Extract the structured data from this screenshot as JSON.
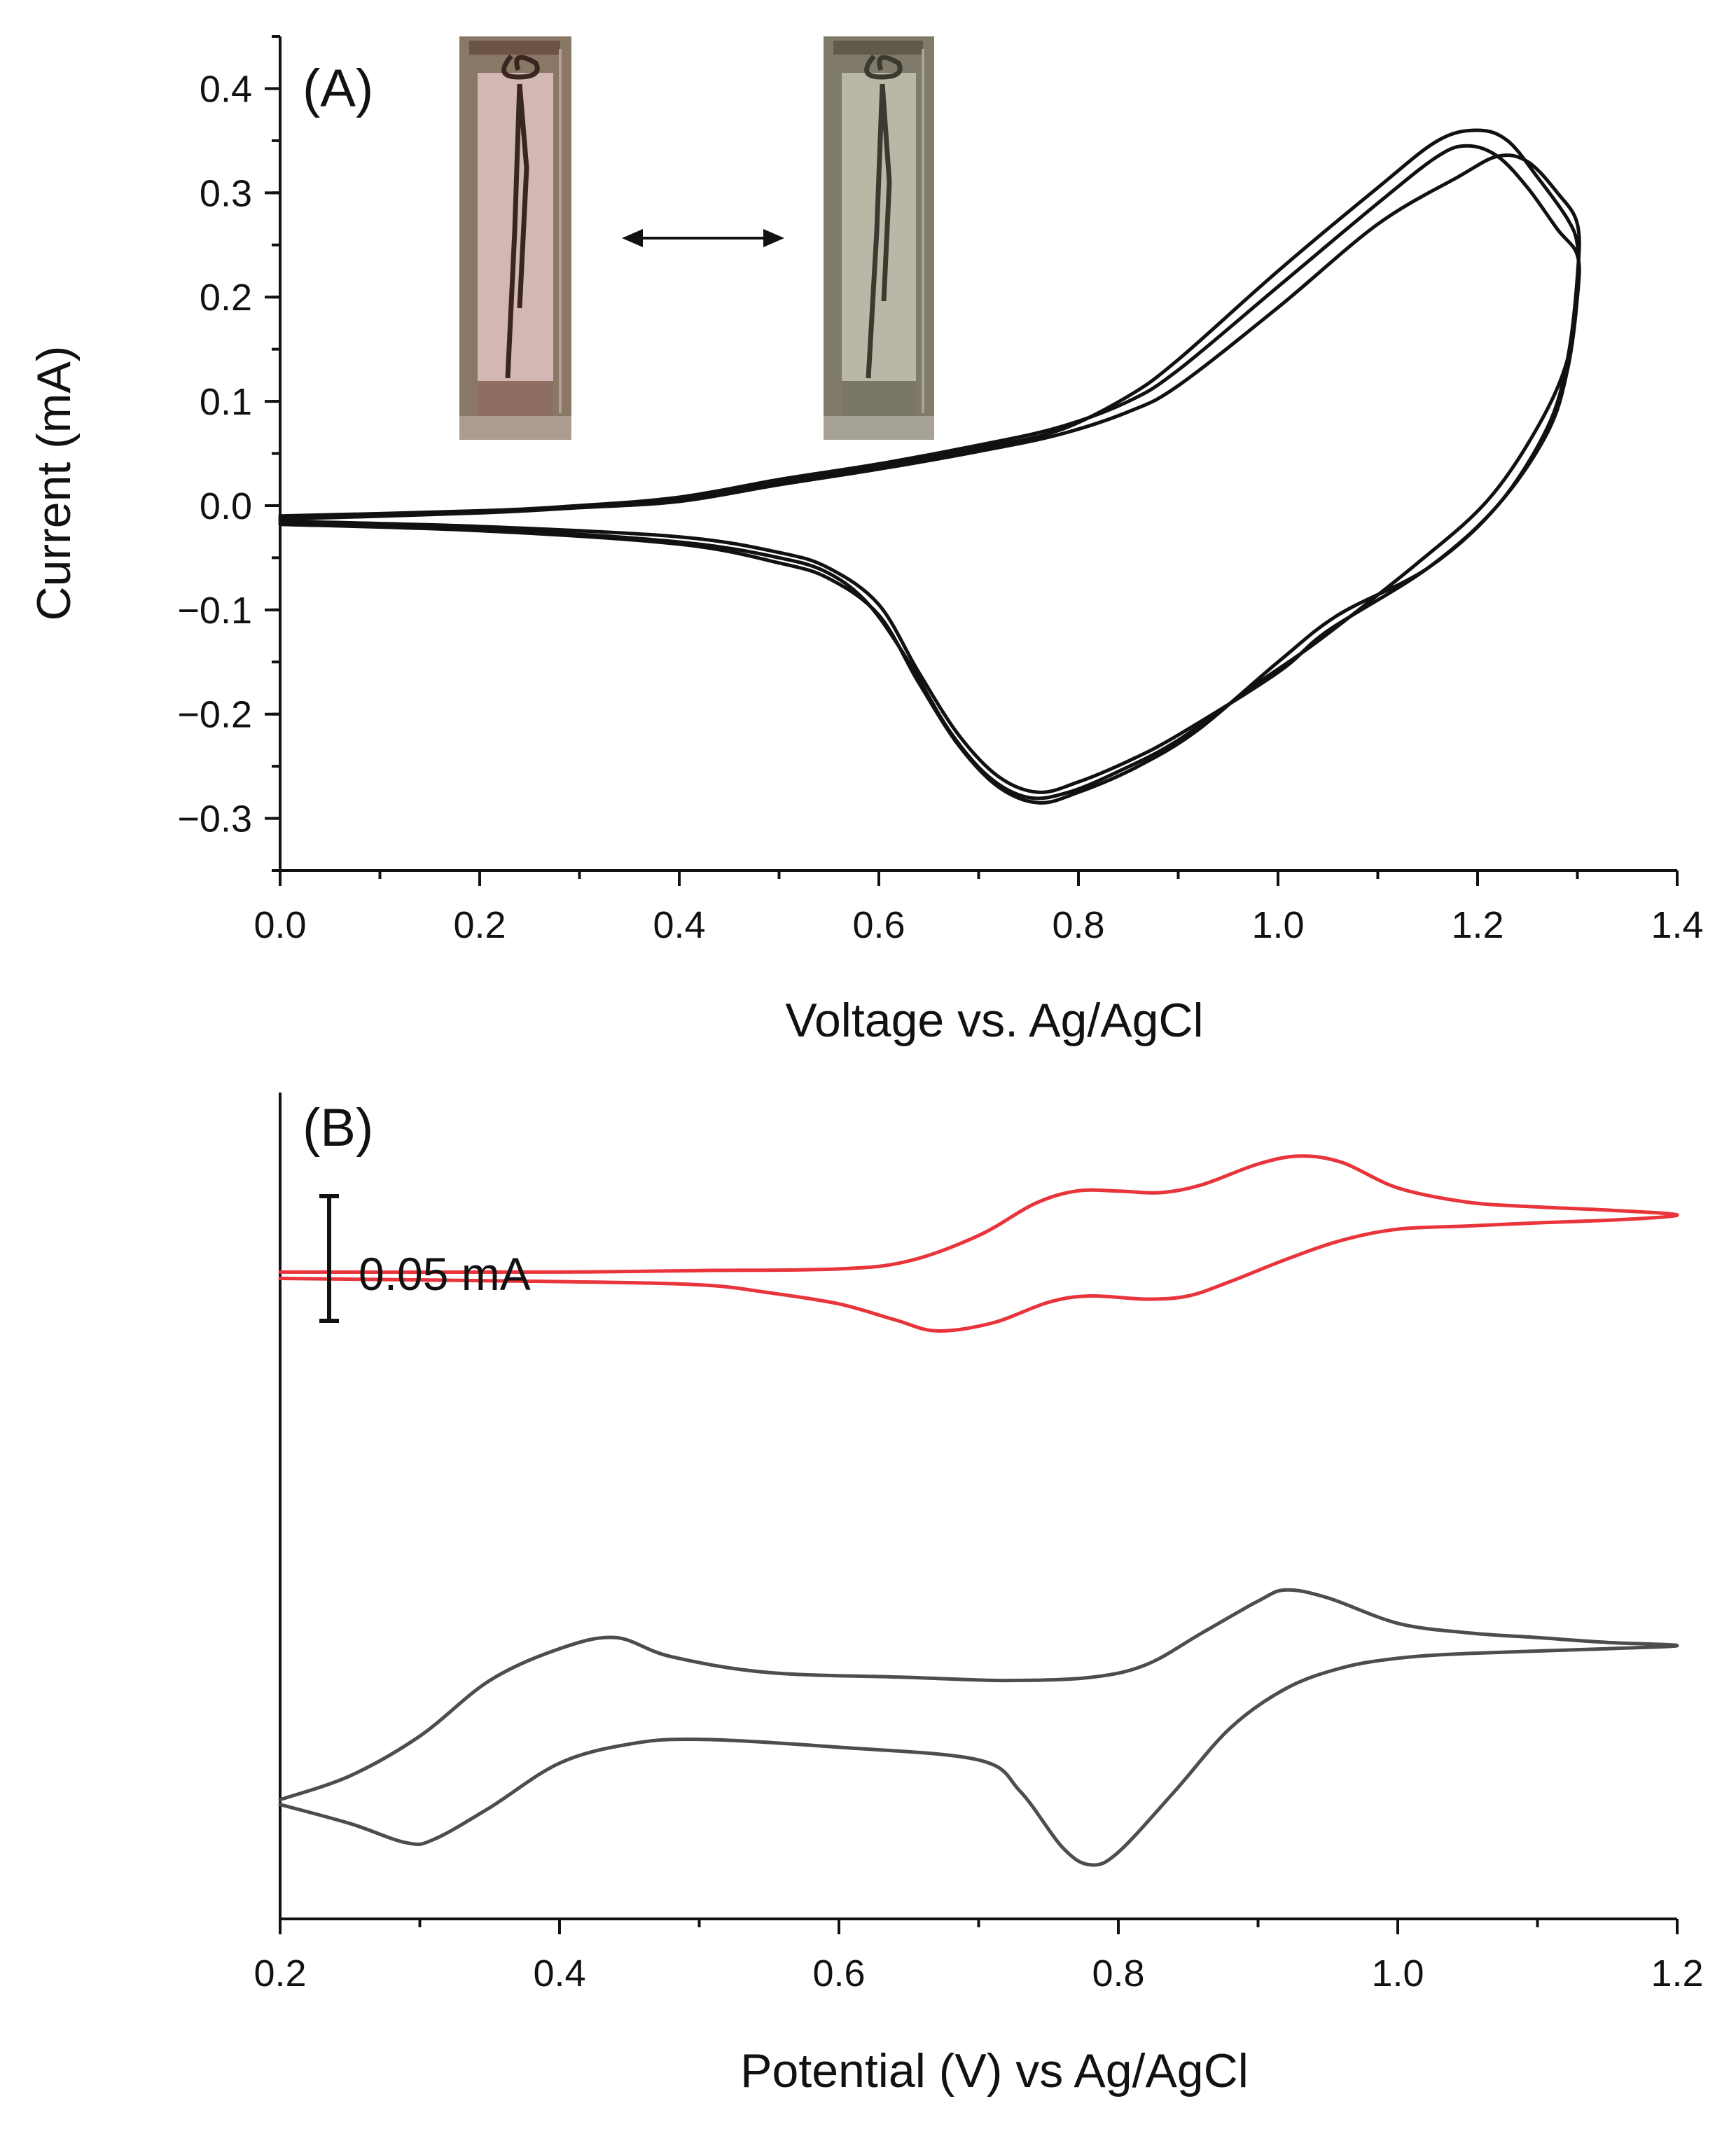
{
  "chart_data": [
    {
      "panel_label": "(A)",
      "type": "line",
      "xlabel": "Voltage vs. Ag/AgCl",
      "ylabel": "Current (mA)",
      "xlim": [
        0.0,
        1.4
      ],
      "ylim": [
        -0.35,
        0.45
      ],
      "xticks": [
        0.0,
        0.2,
        0.4,
        0.6,
        0.8,
        1.0,
        1.2,
        1.4
      ],
      "xtick_labels": [
        "0.0",
        "0.2",
        "0.4",
        "0.6",
        "0.8",
        "1.0",
        "1.2",
        "1.4"
      ],
      "yticks": [
        -0.3,
        -0.2,
        -0.1,
        0.0,
        0.1,
        0.2,
        0.3,
        0.4
      ],
      "ytick_labels": [
        "−0.3",
        "−0.2",
        "−0.1",
        "0.0",
        "0.1",
        "0.2",
        "0.3",
        "0.4"
      ],
      "grid": false,
      "line_color": "#111111",
      "inset": {
        "description_icons": [
          "cuvette-photo-reduced",
          "double-arrow-icon",
          "cuvette-photo-oxidized"
        ]
      },
      "series": [
        {
          "values_xy": [
            [
              0.0,
              -0.01
            ],
            [
              0.2,
              -0.005
            ],
            [
              0.3,
              0.0
            ],
            [
              0.4,
              0.008
            ],
            [
              0.5,
              0.025
            ],
            [
              0.6,
              0.04
            ],
            [
              0.7,
              0.058
            ],
            [
              0.78,
              0.075
            ],
            [
              0.85,
              0.1
            ],
            [
              0.9,
              0.13
            ],
            [
              1.0,
              0.21
            ],
            [
              1.1,
              0.29
            ],
            [
              1.16,
              0.335
            ],
            [
              1.19,
              0.345
            ],
            [
              1.22,
              0.335
            ],
            [
              1.25,
              0.305
            ],
            [
              1.28,
              0.265
            ],
            [
              1.3,
              0.24
            ],
            [
              1.3,
              0.2
            ],
            [
              1.29,
              0.13
            ],
            [
              1.27,
              0.07
            ],
            [
              1.22,
              0.0
            ],
            [
              1.15,
              -0.06
            ],
            [
              1.05,
              -0.12
            ],
            [
              1.0,
              -0.16
            ],
            [
              0.9,
              -0.22
            ],
            [
              0.85,
              -0.245
            ],
            [
              0.8,
              -0.265
            ],
            [
              0.76,
              -0.275
            ],
            [
              0.72,
              -0.26
            ],
            [
              0.68,
              -0.22
            ],
            [
              0.64,
              -0.16
            ],
            [
              0.6,
              -0.095
            ],
            [
              0.55,
              -0.06
            ],
            [
              0.5,
              -0.045
            ],
            [
              0.4,
              -0.03
            ],
            [
              0.2,
              -0.02
            ],
            [
              0.0,
              -0.015
            ]
          ]
        },
        {
          "values_xy": [
            [
              0.0,
              -0.012
            ],
            [
              0.2,
              -0.006
            ],
            [
              0.3,
              -0.001
            ],
            [
              0.4,
              0.005
            ],
            [
              0.5,
              0.022
            ],
            [
              0.6,
              0.037
            ],
            [
              0.7,
              0.055
            ],
            [
              0.78,
              0.072
            ],
            [
              0.85,
              0.105
            ],
            [
              0.9,
              0.14
            ],
            [
              1.0,
              0.225
            ],
            [
              1.1,
              0.305
            ],
            [
              1.16,
              0.35
            ],
            [
              1.2,
              0.36
            ],
            [
              1.23,
              0.35
            ],
            [
              1.26,
              0.315
            ],
            [
              1.29,
              0.275
            ],
            [
              1.3,
              0.25
            ],
            [
              1.3,
              0.21
            ],
            [
              1.29,
              0.14
            ],
            [
              1.26,
              0.075
            ],
            [
              1.21,
              0.005
            ],
            [
              1.14,
              -0.055
            ],
            [
              1.04,
              -0.13
            ],
            [
              0.98,
              -0.17
            ],
            [
              0.9,
              -0.225
            ],
            [
              0.84,
              -0.255
            ],
            [
              0.79,
              -0.275
            ],
            [
              0.75,
              -0.28
            ],
            [
              0.71,
              -0.26
            ],
            [
              0.67,
              -0.215
            ],
            [
              0.63,
              -0.15
            ],
            [
              0.59,
              -0.095
            ],
            [
              0.55,
              -0.065
            ],
            [
              0.5,
              -0.05
            ],
            [
              0.4,
              -0.035
            ],
            [
              0.2,
              -0.022
            ],
            [
              0.0,
              -0.017
            ]
          ]
        },
        {
          "values_xy": [
            [
              0.0,
              -0.013
            ],
            [
              0.2,
              -0.007
            ],
            [
              0.3,
              -0.002
            ],
            [
              0.4,
              0.004
            ],
            [
              0.5,
              0.02
            ],
            [
              0.6,
              0.035
            ],
            [
              0.7,
              0.052
            ],
            [
              0.78,
              0.068
            ],
            [
              0.85,
              0.09
            ],
            [
              0.9,
              0.115
            ],
            [
              1.0,
              0.19
            ],
            [
              1.1,
              0.27
            ],
            [
              1.18,
              0.315
            ],
            [
              1.22,
              0.335
            ],
            [
              1.25,
              0.33
            ],
            [
              1.28,
              0.3
            ],
            [
              1.3,
              0.27
            ],
            [
              1.3,
              0.22
            ],
            [
              1.29,
              0.14
            ],
            [
              1.27,
              0.075
            ],
            [
              1.22,
              0.0
            ],
            [
              1.15,
              -0.06
            ],
            [
              1.06,
              -0.105
            ],
            [
              1.0,
              -0.15
            ],
            [
              0.92,
              -0.215
            ],
            [
              0.86,
              -0.25
            ],
            [
              0.8,
              -0.275
            ],
            [
              0.76,
              -0.285
            ],
            [
              0.72,
              -0.27
            ],
            [
              0.68,
              -0.23
            ],
            [
              0.64,
              -0.17
            ],
            [
              0.6,
              -0.105
            ],
            [
              0.55,
              -0.07
            ],
            [
              0.5,
              -0.055
            ],
            [
              0.4,
              -0.037
            ],
            [
              0.2,
              -0.024
            ],
            [
              0.0,
              -0.018
            ]
          ]
        }
      ]
    },
    {
      "panel_label": "(B)",
      "type": "line",
      "xlabel": "Potential (V) vs Ag/AgCl",
      "ylabel": "",
      "xlim": [
        0.2,
        1.2
      ],
      "ylim": [
        -0.47,
        0.05
      ],
      "xticks": [
        0.2,
        0.4,
        0.6,
        0.8,
        1.0,
        1.2
      ],
      "xtick_labels": [
        "0.2",
        "0.4",
        "0.6",
        "0.8",
        "1.0",
        "1.2"
      ],
      "grid": false,
      "scale_bar": {
        "label": "0.05 mA",
        "value": 0.05
      },
      "series": [
        {
          "color": "#e8343a",
          "values_xy": [
            [
              0.2,
              -0.063
            ],
            [
              0.4,
              -0.063
            ],
            [
              0.5,
              -0.062
            ],
            [
              0.6,
              -0.061
            ],
            [
              0.65,
              -0.056
            ],
            [
              0.7,
              -0.04
            ],
            [
              0.74,
              -0.02
            ],
            [
              0.77,
              -0.012
            ],
            [
              0.8,
              -0.012
            ],
            [
              0.83,
              -0.013
            ],
            [
              0.86,
              -0.008
            ],
            [
              0.9,
              0.005
            ],
            [
              0.93,
              0.01
            ],
            [
              0.96,
              0.006
            ],
            [
              1.0,
              -0.01
            ],
            [
              1.05,
              -0.019
            ],
            [
              1.1,
              -0.022
            ],
            [
              1.15,
              -0.024
            ],
            [
              1.2,
              -0.027
            ],
            [
              1.16,
              -0.03
            ],
            [
              1.1,
              -0.032
            ],
            [
              1.05,
              -0.034
            ],
            [
              1.0,
              -0.036
            ],
            [
              0.96,
              -0.043
            ],
            [
              0.92,
              -0.055
            ],
            [
              0.88,
              -0.069
            ],
            [
              0.85,
              -0.078
            ],
            [
              0.82,
              -0.08
            ],
            [
              0.78,
              -0.078
            ],
            [
              0.75,
              -0.082
            ],
            [
              0.71,
              -0.095
            ],
            [
              0.67,
              -0.1
            ],
            [
              0.64,
              -0.093
            ],
            [
              0.6,
              -0.083
            ],
            [
              0.55,
              -0.076
            ],
            [
              0.5,
              -0.071
            ],
            [
              0.4,
              -0.069
            ],
            [
              0.2,
              -0.067
            ]
          ]
        },
        {
          "color": "#4d4d4d",
          "values_xy": [
            [
              0.2,
              -0.395
            ],
            [
              0.25,
              -0.38
            ],
            [
              0.3,
              -0.355
            ],
            [
              0.35,
              -0.32
            ],
            [
              0.4,
              -0.3
            ],
            [
              0.44,
              -0.293
            ],
            [
              0.48,
              -0.305
            ],
            [
              0.55,
              -0.315
            ],
            [
              0.65,
              -0.318
            ],
            [
              0.72,
              -0.32
            ],
            [
              0.78,
              -0.318
            ],
            [
              0.82,
              -0.31
            ],
            [
              0.86,
              -0.29
            ],
            [
              0.9,
              -0.27
            ],
            [
              0.92,
              -0.263
            ],
            [
              0.95,
              -0.268
            ],
            [
              1.0,
              -0.284
            ],
            [
              1.05,
              -0.29
            ],
            [
              1.1,
              -0.293
            ],
            [
              1.15,
              -0.296
            ],
            [
              1.2,
              -0.298
            ],
            [
              1.15,
              -0.3
            ],
            [
              1.05,
              -0.303
            ],
            [
              1.0,
              -0.306
            ],
            [
              0.96,
              -0.312
            ],
            [
              0.92,
              -0.325
            ],
            [
              0.88,
              -0.35
            ],
            [
              0.84,
              -0.39
            ],
            [
              0.8,
              -0.428
            ],
            [
              0.78,
              -0.436
            ],
            [
              0.76,
              -0.425
            ],
            [
              0.73,
              -0.39
            ],
            [
              0.7,
              -0.37
            ],
            [
              0.6,
              -0.362
            ],
            [
              0.5,
              -0.357
            ],
            [
              0.45,
              -0.36
            ],
            [
              0.4,
              -0.372
            ],
            [
              0.35,
              -0.4
            ],
            [
              0.31,
              -0.42
            ],
            [
              0.29,
              -0.422
            ],
            [
              0.25,
              -0.41
            ],
            [
              0.2,
              -0.398
            ]
          ]
        }
      ]
    }
  ]
}
